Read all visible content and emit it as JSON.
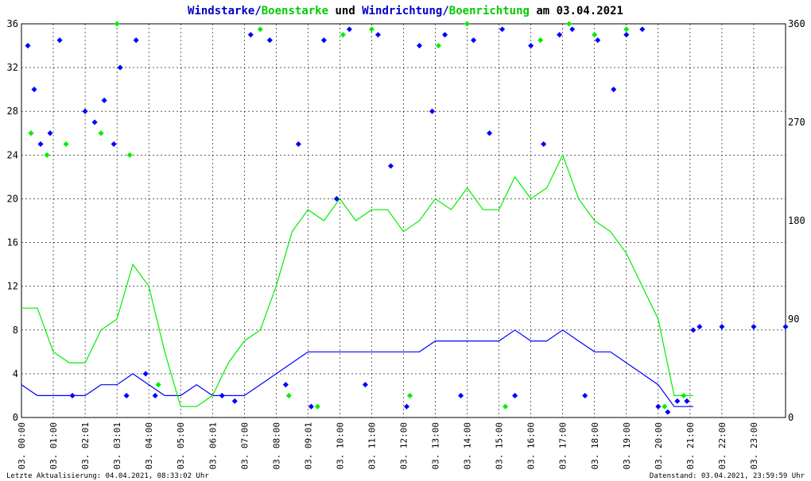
{
  "colors": {
    "wind": "#0000ff",
    "gust": "#00ee00",
    "grid": "#000000",
    "text": "#000000"
  },
  "chart_data": {
    "type": "line",
    "title": {
      "part1": "Windstarke",
      "sep1": "/",
      "part2": "Boenstarke",
      "mid": " und ",
      "part3": "Windrichtung",
      "sep2": "/",
      "part4": "Boenrichtung",
      "tail": " am 03.04.2021"
    },
    "x_labels": [
      "03. 00:00",
      "03. 01:00",
      "03. 02:01",
      "03. 03:01",
      "03. 04:00",
      "03. 05:00",
      "03. 06:01",
      "03. 07:00",
      "03. 08:00",
      "03. 09:01",
      "03. 10:00",
      "03. 11:00",
      "03. 12:00",
      "03. 13:00",
      "03. 14:00",
      "03. 15:00",
      "03. 16:00",
      "03. 17:00",
      "03. 18:00",
      "03. 19:00",
      "03. 20:00",
      "03. 21:00",
      "03. 22:00",
      "03. 23:00"
    ],
    "xlim_hours": [
      0,
      24
    ],
    "y_left": {
      "ylim": [
        0,
        36
      ],
      "ticks": [
        "0",
        "4",
        "8",
        "12",
        "16",
        "20",
        "24",
        "28",
        "32",
        "36"
      ]
    },
    "y_right": {
      "ylim": [
        0,
        360
      ],
      "ticks": [
        "0",
        "90",
        "180",
        "270",
        "360"
      ]
    },
    "grid": true,
    "series": [
      {
        "name": "Windstarke",
        "kind": "line",
        "axis": "left",
        "color": "#0000ff",
        "hours": [
          0,
          0.5,
          1,
          1.5,
          2,
          2.5,
          3,
          3.5,
          4,
          4.5,
          5,
          5.5,
          6,
          6.5,
          7,
          7.5,
          8,
          8.5,
          9,
          9.5,
          10,
          10.5,
          11,
          11.5,
          12,
          12.5,
          13,
          13.5,
          14,
          14.5,
          15,
          15.5,
          16,
          16.5,
          17,
          17.5,
          18,
          18.5,
          19,
          19.5,
          20,
          20.5,
          21,
          21.1
        ],
        "values": [
          3,
          2,
          2,
          2,
          2,
          3,
          3,
          4,
          3,
          2,
          2,
          3,
          2,
          2,
          2,
          3,
          4,
          5,
          6,
          6,
          6,
          6,
          6,
          6,
          6,
          6,
          7,
          7,
          7,
          7,
          7,
          8,
          7,
          7,
          8,
          7,
          6,
          6,
          5,
          4,
          3,
          1,
          1,
          1
        ]
      },
      {
        "name": "Boenstarke",
        "kind": "line",
        "axis": "left",
        "color": "#00ee00",
        "hours": [
          0,
          0.5,
          1,
          1.5,
          2,
          2.5,
          3,
          3.5,
          4,
          4.5,
          5,
          5.5,
          6,
          6.5,
          7,
          7.5,
          8,
          8.5,
          9,
          9.5,
          10,
          10.5,
          11,
          11.5,
          12,
          12.5,
          13,
          13.5,
          14,
          14.5,
          15,
          15.5,
          16,
          16.5,
          17,
          17.5,
          18,
          18.5,
          19,
          19.5,
          20,
          20.5,
          21,
          21.1
        ],
        "values": [
          10,
          10,
          6,
          5,
          5,
          8,
          9,
          14,
          12,
          6,
          1,
          1,
          2,
          5,
          7,
          8,
          12,
          17,
          19,
          18,
          20,
          18,
          19,
          19,
          17,
          18,
          20,
          19,
          21,
          19,
          19,
          22,
          20,
          21,
          24,
          20,
          18,
          17,
          15,
          12,
          9,
          2,
          2,
          2
        ]
      },
      {
        "name": "Windrichtung",
        "kind": "scatter",
        "axis": "right",
        "color": "#0000ff",
        "description_values_deg_by_hour": [
          [
            0.2,
            340
          ],
          [
            0.4,
            300
          ],
          [
            0.6,
            250
          ],
          [
            0.9,
            260
          ],
          [
            1.2,
            345
          ],
          [
            1.6,
            20
          ],
          [
            2.0,
            280
          ],
          [
            2.3,
            270
          ],
          [
            2.6,
            290
          ],
          [
            2.9,
            250
          ],
          [
            3.1,
            320
          ],
          [
            3.3,
            20
          ],
          [
            3.6,
            345
          ],
          [
            3.9,
            40
          ],
          [
            4.2,
            20
          ],
          [
            6.3,
            20
          ],
          [
            6.7,
            15
          ],
          [
            7.2,
            350
          ],
          [
            7.8,
            345
          ],
          [
            8.3,
            30
          ],
          [
            8.7,
            250
          ],
          [
            9.1,
            10
          ],
          [
            9.5,
            345
          ],
          [
            9.9,
            200
          ],
          [
            10.3,
            355
          ],
          [
            10.8,
            30
          ],
          [
            11.2,
            350
          ],
          [
            11.6,
            230
          ],
          [
            12.1,
            10
          ],
          [
            12.5,
            340
          ],
          [
            12.9,
            280
          ],
          [
            13.3,
            350
          ],
          [
            13.8,
            20
          ],
          [
            14.2,
            345
          ],
          [
            14.7,
            260
          ],
          [
            15.1,
            355
          ],
          [
            15.5,
            20
          ],
          [
            16.0,
            340
          ],
          [
            16.4,
            250
          ],
          [
            16.9,
            350
          ],
          [
            17.3,
            355
          ],
          [
            17.7,
            20
          ],
          [
            18.1,
            345
          ],
          [
            18.6,
            300
          ],
          [
            19.0,
            350
          ],
          [
            19.5,
            355
          ],
          [
            20.0,
            10
          ],
          [
            20.3,
            5
          ],
          [
            20.6,
            15
          ],
          [
            20.9,
            15
          ],
          [
            21.1,
            80
          ],
          [
            21.3,
            83
          ],
          [
            22,
            83
          ],
          [
            23,
            83
          ],
          [
            24,
            83
          ]
        ]
      },
      {
        "name": "Boenrichtung",
        "kind": "scatter",
        "axis": "right",
        "color": "#00ee00",
        "description_values_deg_by_hour": [
          [
            0.3,
            260
          ],
          [
            0.8,
            240
          ],
          [
            1.4,
            250
          ],
          [
            2.5,
            260
          ],
          [
            3.0,
            360
          ],
          [
            3.4,
            240
          ],
          [
            4.3,
            30
          ],
          [
            7.5,
            355
          ],
          [
            8.4,
            20
          ],
          [
            9.3,
            10
          ],
          [
            10.1,
            350
          ],
          [
            11.0,
            355
          ],
          [
            12.2,
            20
          ],
          [
            13.1,
            340
          ],
          [
            14.0,
            360
          ],
          [
            15.2,
            10
          ],
          [
            16.3,
            345
          ],
          [
            17.2,
            360
          ],
          [
            18.0,
            350
          ],
          [
            19.0,
            355
          ],
          [
            20.2,
            10
          ],
          [
            20.8,
            20
          ]
        ]
      }
    ]
  },
  "footer": {
    "left": "Letzte Aktualisierung: 04.04.2021, 08:33:02 Uhr",
    "right": "Datenstand: 03.04.2021, 23:59:59 Uhr"
  }
}
